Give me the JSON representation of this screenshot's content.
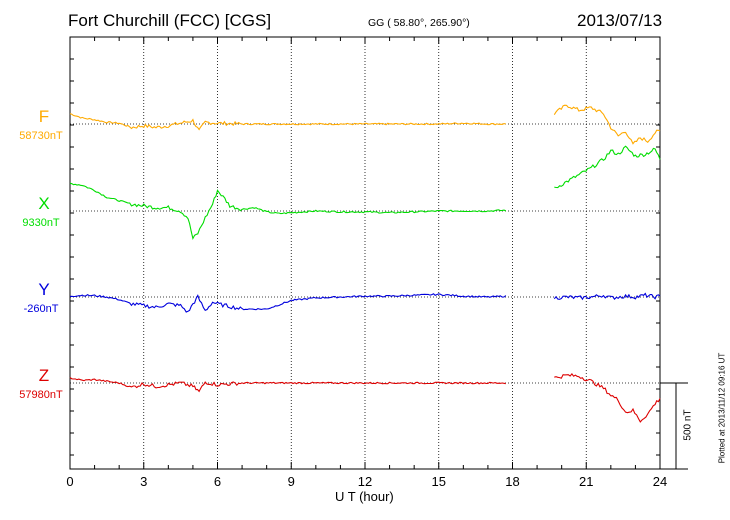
{
  "header": {
    "station": "Fort Churchill (FCC)  [CGS]",
    "coords": "GG ( 58.80°, 265.90°)",
    "date": "2013/07/13"
  },
  "footer_note": "Plotted at 2013/11/12 09:16 UT",
  "chart_data": {
    "type": "line",
    "title": "Fort Churchill (FCC)  [CGS]",
    "xlabel": "U T (hour)",
    "ylabel": "",
    "xlim": [
      0,
      24
    ],
    "xticks": [
      0,
      3,
      6,
      9,
      12,
      15,
      18,
      21,
      24
    ],
    "xtick_labels": [
      "0",
      "3",
      "6",
      "9",
      "12",
      "15",
      "18",
      "21",
      "24"
    ],
    "grid": true,
    "y_units": "nT",
    "scale_bar": {
      "value": 500,
      "label": "500 nT"
    },
    "data_gap": [
      17.8,
      19.7
    ],
    "series": [
      {
        "name": "F",
        "baseline_label": "58730nT",
        "baseline_nT": 58730,
        "color": "#ffaa00",
        "x": [
          0,
          0.5,
          1,
          1.5,
          2,
          2.5,
          3,
          3.5,
          4,
          4.5,
          5,
          5.25,
          5.5,
          6,
          7,
          8,
          9,
          10,
          11,
          12,
          13,
          14,
          15,
          16,
          17,
          17.8,
          19.7,
          20.2,
          20.7,
          21.2,
          21.7,
          22.0,
          22.3,
          22.6,
          22.9,
          23.2,
          23.5,
          23.8,
          24
        ],
        "y": [
          60,
          35,
          25,
          10,
          5,
          -20,
          -10,
          -20,
          -10,
          5,
          20,
          -40,
          10,
          5,
          0,
          0,
          0,
          0,
          0,
          0,
          0,
          0,
          0,
          5,
          0,
          0,
          60,
          110,
          80,
          95,
          60,
          -20,
          -70,
          -40,
          -120,
          -80,
          -100,
          -50,
          -40
        ]
      },
      {
        "name": "X",
        "baseline_label": "9330nT",
        "baseline_nT": 9330,
        "color": "#00dd00",
        "x": [
          0,
          0.5,
          1,
          1.5,
          2,
          2.5,
          3,
          3.5,
          4,
          4.5,
          4.8,
          5.0,
          5.2,
          5.5,
          5.8,
          6,
          6.3,
          6.5,
          7,
          7.5,
          8,
          8.5,
          9,
          10,
          11,
          12,
          13,
          14,
          15,
          16,
          17,
          17.8,
          19.7,
          20.2,
          20.7,
          21.2,
          21.7,
          22.0,
          22.3,
          22.6,
          23.0,
          23.4,
          23.8,
          24
        ],
        "y": [
          160,
          150,
          120,
          80,
          60,
          40,
          30,
          20,
          20,
          0,
          -40,
          -160,
          -130,
          -40,
          40,
          120,
          70,
          30,
          10,
          20,
          -5,
          -15,
          -10,
          0,
          -5,
          -5,
          -10,
          -5,
          0,
          0,
          0,
          5,
          130,
          170,
          210,
          250,
          300,
          350,
          330,
          370,
          320,
          330,
          360,
          300
        ]
      },
      {
        "name": "Y",
        "baseline_label": "-260nT",
        "baseline_nT": -260,
        "color": "#0000dd",
        "x": [
          0,
          0.5,
          1,
          1.5,
          2,
          2.5,
          3,
          3.5,
          4,
          4.5,
          4.8,
          5.0,
          5.2,
          5.5,
          5.8,
          6,
          7,
          8,
          9,
          10,
          11,
          12,
          13,
          14,
          15,
          16,
          17,
          17.8,
          19.7,
          20.2,
          20.7,
          21.2,
          21.7,
          22.0,
          22.3,
          22.6,
          23.0,
          23.4,
          23.8,
          24
        ],
        "y": [
          5,
          10,
          8,
          0,
          -15,
          -40,
          -50,
          -60,
          -40,
          -50,
          -90,
          -40,
          0,
          -80,
          -30,
          -40,
          -70,
          -70,
          -20,
          -5,
          0,
          5,
          5,
          10,
          15,
          5,
          0,
          5,
          -5,
          0,
          -5,
          0,
          10,
          -5,
          0,
          5,
          0,
          10,
          0,
          5
        ]
      },
      {
        "name": "Z",
        "baseline_label": "57980nT",
        "baseline_nT": 57980,
        "color": "#dd0000",
        "x": [
          0,
          0.5,
          1,
          1.5,
          2,
          2.5,
          3,
          3.5,
          4,
          4.5,
          5,
          5.25,
          5.5,
          6,
          7,
          8,
          9,
          10,
          11,
          12,
          13,
          14,
          15,
          16,
          17,
          17.8,
          19.7,
          20.2,
          20.7,
          21.2,
          21.7,
          22.0,
          22.3,
          22.6,
          22.9,
          23.2,
          23.5,
          23.8,
          24
        ],
        "y": [
          30,
          15,
          20,
          10,
          0,
          -25,
          -5,
          -20,
          -10,
          0,
          -20,
          -50,
          5,
          -10,
          0,
          0,
          0,
          0,
          0,
          0,
          0,
          0,
          0,
          0,
          0,
          0,
          30,
          45,
          40,
          10,
          -30,
          -70,
          -100,
          -170,
          -160,
          -220,
          -180,
          -120,
          -90
        ]
      }
    ]
  }
}
